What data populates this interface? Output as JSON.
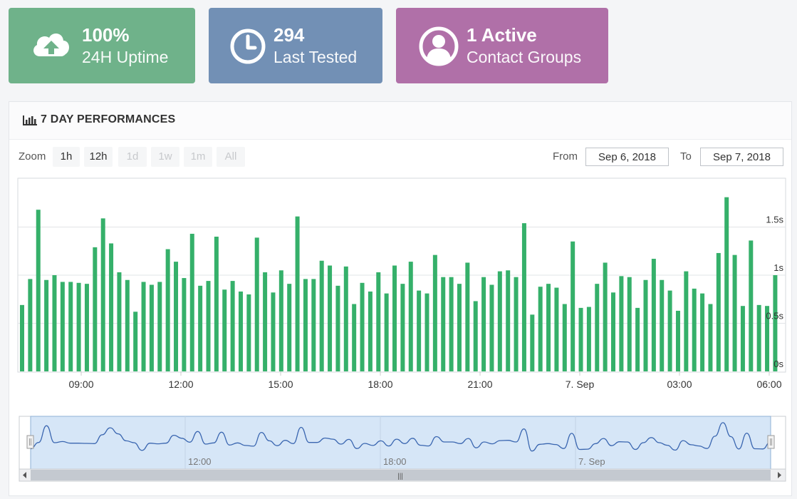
{
  "stats": [
    {
      "value": "100%",
      "label": "24H Uptime",
      "color": "#6fb28a",
      "icon": "cloud-upload-icon"
    },
    {
      "value": "294",
      "label": "Last Tested",
      "color": "#7290b5",
      "icon": "clock-icon"
    },
    {
      "value": "1 Active",
      "label": "Contact Groups",
      "color": "#b070a8",
      "icon": "user-circle-icon"
    }
  ],
  "panel": {
    "title": "7 DAY PERFORMANCES",
    "icon": "bar-chart-icon"
  },
  "zoom": {
    "label": "Zoom",
    "buttons": [
      {
        "label": "1h",
        "enabled": true
      },
      {
        "label": "12h",
        "enabled": true
      },
      {
        "label": "1d",
        "enabled": false
      },
      {
        "label": "1w",
        "enabled": false
      },
      {
        "label": "1m",
        "enabled": false
      },
      {
        "label": "All",
        "enabled": false
      }
    ]
  },
  "range": {
    "from_label": "From",
    "from_value": "Sep 6, 2018",
    "to_label": "To",
    "to_value": "Sep 7, 2018"
  },
  "chart_data": {
    "type": "bar",
    "bar_color": "#35b06a",
    "x_ticks": [
      "09:00",
      "12:00",
      "15:00",
      "18:00",
      "21:00",
      "7. Sep",
      "03:00",
      "06:00"
    ],
    "y_ticks": [
      "0s",
      "0.5s",
      "1s",
      "1.5s"
    ],
    "ylim": [
      0,
      2
    ],
    "grid": true,
    "values": [
      0.69,
      0.96,
      1.68,
      0.95,
      1.0,
      0.93,
      0.93,
      0.92,
      0.91,
      1.29,
      1.59,
      1.33,
      1.03,
      0.95,
      0.62,
      0.93,
      0.9,
      0.93,
      1.27,
      1.14,
      0.97,
      1.43,
      0.89,
      0.94,
      1.4,
      0.85,
      0.94,
      0.83,
      0.8,
      1.39,
      1.03,
      0.82,
      1.05,
      0.91,
      1.61,
      0.96,
      0.96,
      1.15,
      1.1,
      0.89,
      1.09,
      0.7,
      0.92,
      0.83,
      1.03,
      0.81,
      1.1,
      0.91,
      1.14,
      0.84,
      0.81,
      1.21,
      0.98,
      0.98,
      0.91,
      1.13,
      0.73,
      0.98,
      0.9,
      1.04,
      1.05,
      0.98,
      1.54,
      0.59,
      0.88,
      0.91,
      0.87,
      0.7,
      1.35,
      0.66,
      0.67,
      0.91,
      1.13,
      0.82,
      0.99,
      0.98,
      0.66,
      0.95,
      1.17,
      0.95,
      0.84,
      0.63,
      1.04,
      0.86,
      0.81,
      0.7,
      1.23,
      1.81,
      1.21,
      0.68,
      1.36,
      0.69,
      0.68,
      1.0
    ],
    "navigator": {
      "x_ticks": [
        "12:00",
        "18:00",
        "7. Sep"
      ],
      "scrollbar_handle": "|||"
    }
  }
}
